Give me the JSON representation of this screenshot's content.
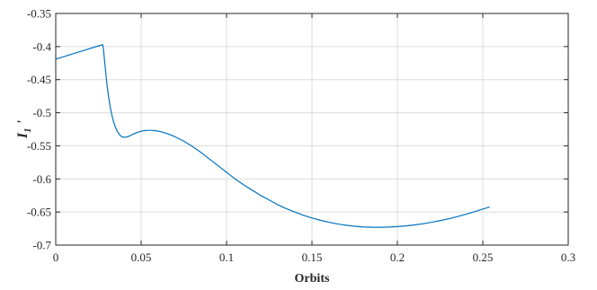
{
  "chart_data": {
    "type": "line",
    "title": "",
    "xlabel": "Orbits",
    "ylabel": {
      "main": "I",
      "sub": "1",
      "prime": "'"
    },
    "xlim": [
      0,
      0.3
    ],
    "ylim": [
      -0.7,
      -0.35
    ],
    "xticks": [
      "0",
      "0.05",
      "0.1",
      "0.15",
      "0.2",
      "0.25",
      "0.3"
    ],
    "yticks": [
      "-0.35",
      "-0.4",
      "-0.45",
      "-0.5",
      "-0.55",
      "-0.6",
      "-0.65",
      "-0.7"
    ],
    "grid": true,
    "legend": "none",
    "series": [
      {
        "color": "#0072BD",
        "x": [
          0,
          0.005,
          0.01,
          0.015,
          0.02,
          0.025,
          0.0275,
          0.028,
          0.029,
          0.03,
          0.031,
          0.032,
          0.033,
          0.034,
          0.035,
          0.036,
          0.037,
          0.038,
          0.039,
          0.04,
          0.041,
          0.042,
          0.043,
          0.044,
          0.045,
          0.046,
          0.048,
          0.05,
          0.052,
          0.054,
          0.056,
          0.058,
          0.06,
          0.062,
          0.064,
          0.066,
          0.068,
          0.07,
          0.075,
          0.08,
          0.085,
          0.09,
          0.095,
          0.1,
          0.105,
          0.11,
          0.115,
          0.12,
          0.125,
          0.13,
          0.135,
          0.14,
          0.145,
          0.15,
          0.155,
          0.16,
          0.165,
          0.17,
          0.175,
          0.18,
          0.185,
          0.19,
          0.195,
          0.2,
          0.205,
          0.21,
          0.215,
          0.22,
          0.225,
          0.23,
          0.235,
          0.24,
          0.245,
          0.25,
          0.254
        ],
        "y": [
          -0.419,
          -0.415,
          -0.411,
          -0.407,
          -0.403,
          -0.399,
          -0.397,
          -0.406,
          -0.432,
          -0.458,
          -0.477,
          -0.493,
          -0.505,
          -0.515,
          -0.522,
          -0.528,
          -0.532,
          -0.535,
          -0.5365,
          -0.537,
          -0.5368,
          -0.5362,
          -0.5352,
          -0.534,
          -0.5327,
          -0.5315,
          -0.5295,
          -0.528,
          -0.527,
          -0.5266,
          -0.5266,
          -0.527,
          -0.5278,
          -0.529,
          -0.5305,
          -0.5322,
          -0.5342,
          -0.5365,
          -0.543,
          -0.551,
          -0.56,
          -0.57,
          -0.58,
          -0.59,
          -0.6,
          -0.609,
          -0.617,
          -0.625,
          -0.632,
          -0.639,
          -0.645,
          -0.65,
          -0.655,
          -0.659,
          -0.6625,
          -0.6655,
          -0.668,
          -0.67,
          -0.6715,
          -0.6725,
          -0.673,
          -0.673,
          -0.6727,
          -0.672,
          -0.671,
          -0.6695,
          -0.6677,
          -0.6655,
          -0.663,
          -0.6602,
          -0.657,
          -0.6535,
          -0.6497,
          -0.6455,
          -0.6425
        ]
      }
    ]
  }
}
